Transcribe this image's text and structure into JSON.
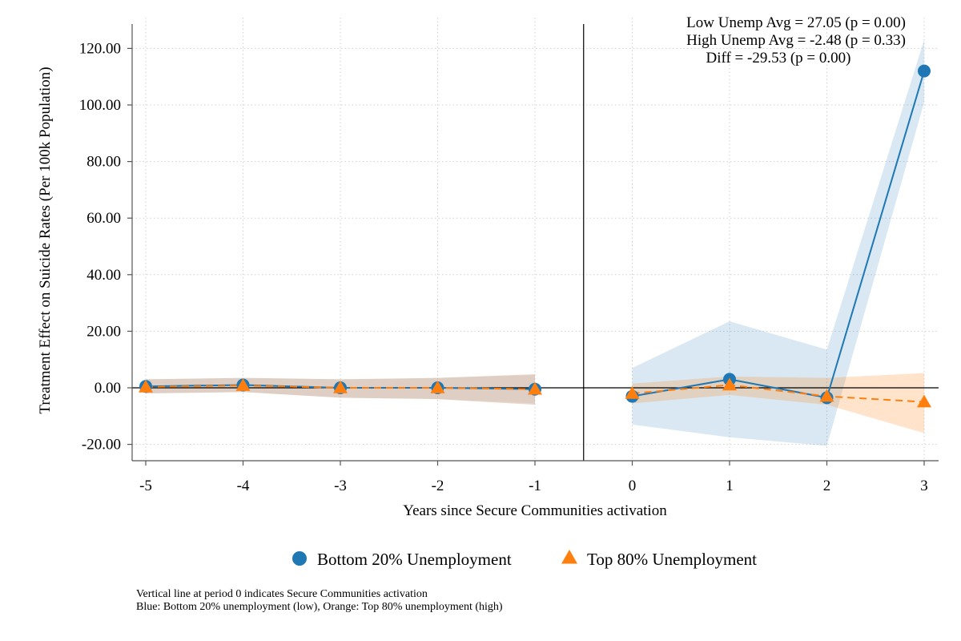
{
  "chart_data": {
    "type": "line",
    "xlabel": "Years since Secure Communities activation",
    "ylabel": "Treatment Effect on Suicide Rates (Per 100k Population)",
    "x_ticks": [
      "-5",
      "-4",
      "-3",
      "-2",
      "-1",
      "0",
      "1",
      "2",
      "3"
    ],
    "y_ticks": [
      "-20.00",
      "0.00",
      "20.00",
      "40.00",
      "60.00",
      "80.00",
      "100.00",
      "120.00"
    ],
    "ylim": [
      -25,
      128
    ],
    "grid": true,
    "legend_position": "bottom",
    "annotations": [
      "Low Unemp Avg = 27.05 (p = 0.00)",
      "High Unemp Avg = -2.48 (p = 0.33)",
      "Diff = -29.53 (p = 0.00)"
    ],
    "series": [
      {
        "name": "Bottom 20% Unemployment",
        "color": "#1f77b4",
        "marker": "circle",
        "line_style": "solid",
        "pre": {
          "x": [
            -5,
            -4,
            -3,
            -2,
            -1
          ],
          "y": [
            0.5,
            1.0,
            0.0,
            0.0,
            -0.5
          ],
          "ci_low": [
            -2.0,
            -1.5,
            -3.5,
            -4.0,
            -5.5
          ],
          "ci_high": [
            3.0,
            3.5,
            3.0,
            3.5,
            4.5
          ]
        },
        "post": {
          "x": [
            0,
            1,
            2,
            3
          ],
          "y": [
            -3.0,
            3.0,
            -3.5,
            112.0
          ],
          "ci_low": [
            -13.0,
            -17.5,
            -20.5,
            101.0
          ],
          "ci_high": [
            7.0,
            23.5,
            13.5,
            123.0
          ]
        }
      },
      {
        "name": "Top 80% Unemployment",
        "color": "#ff7f0e",
        "marker": "triangle",
        "line_style": "dashed",
        "pre": {
          "x": [
            -5,
            -4,
            -3,
            -2,
            -1
          ],
          "y": [
            0.3,
            0.8,
            0.0,
            0.0,
            -0.5
          ],
          "ci_low": [
            -2.0,
            -1.5,
            -3.5,
            -4.0,
            -6.0
          ],
          "ci_high": [
            3.0,
            3.5,
            3.0,
            3.5,
            4.8
          ]
        },
        "post": {
          "x": [
            0,
            1,
            2,
            3
          ],
          "y": [
            -2.0,
            1.0,
            -3.0,
            -5.0
          ],
          "ci_low": [
            -5.5,
            -2.5,
            -6.0,
            -16.0
          ],
          "ci_high": [
            1.5,
            4.0,
            3.5,
            5.2
          ]
        }
      }
    ]
  },
  "notes": [
    "Vertical line at period 0 indicates Secure Communities activation",
    "Blue: Bottom 20% unemployment (low), Orange: Top 80% unemployment (high)"
  ]
}
